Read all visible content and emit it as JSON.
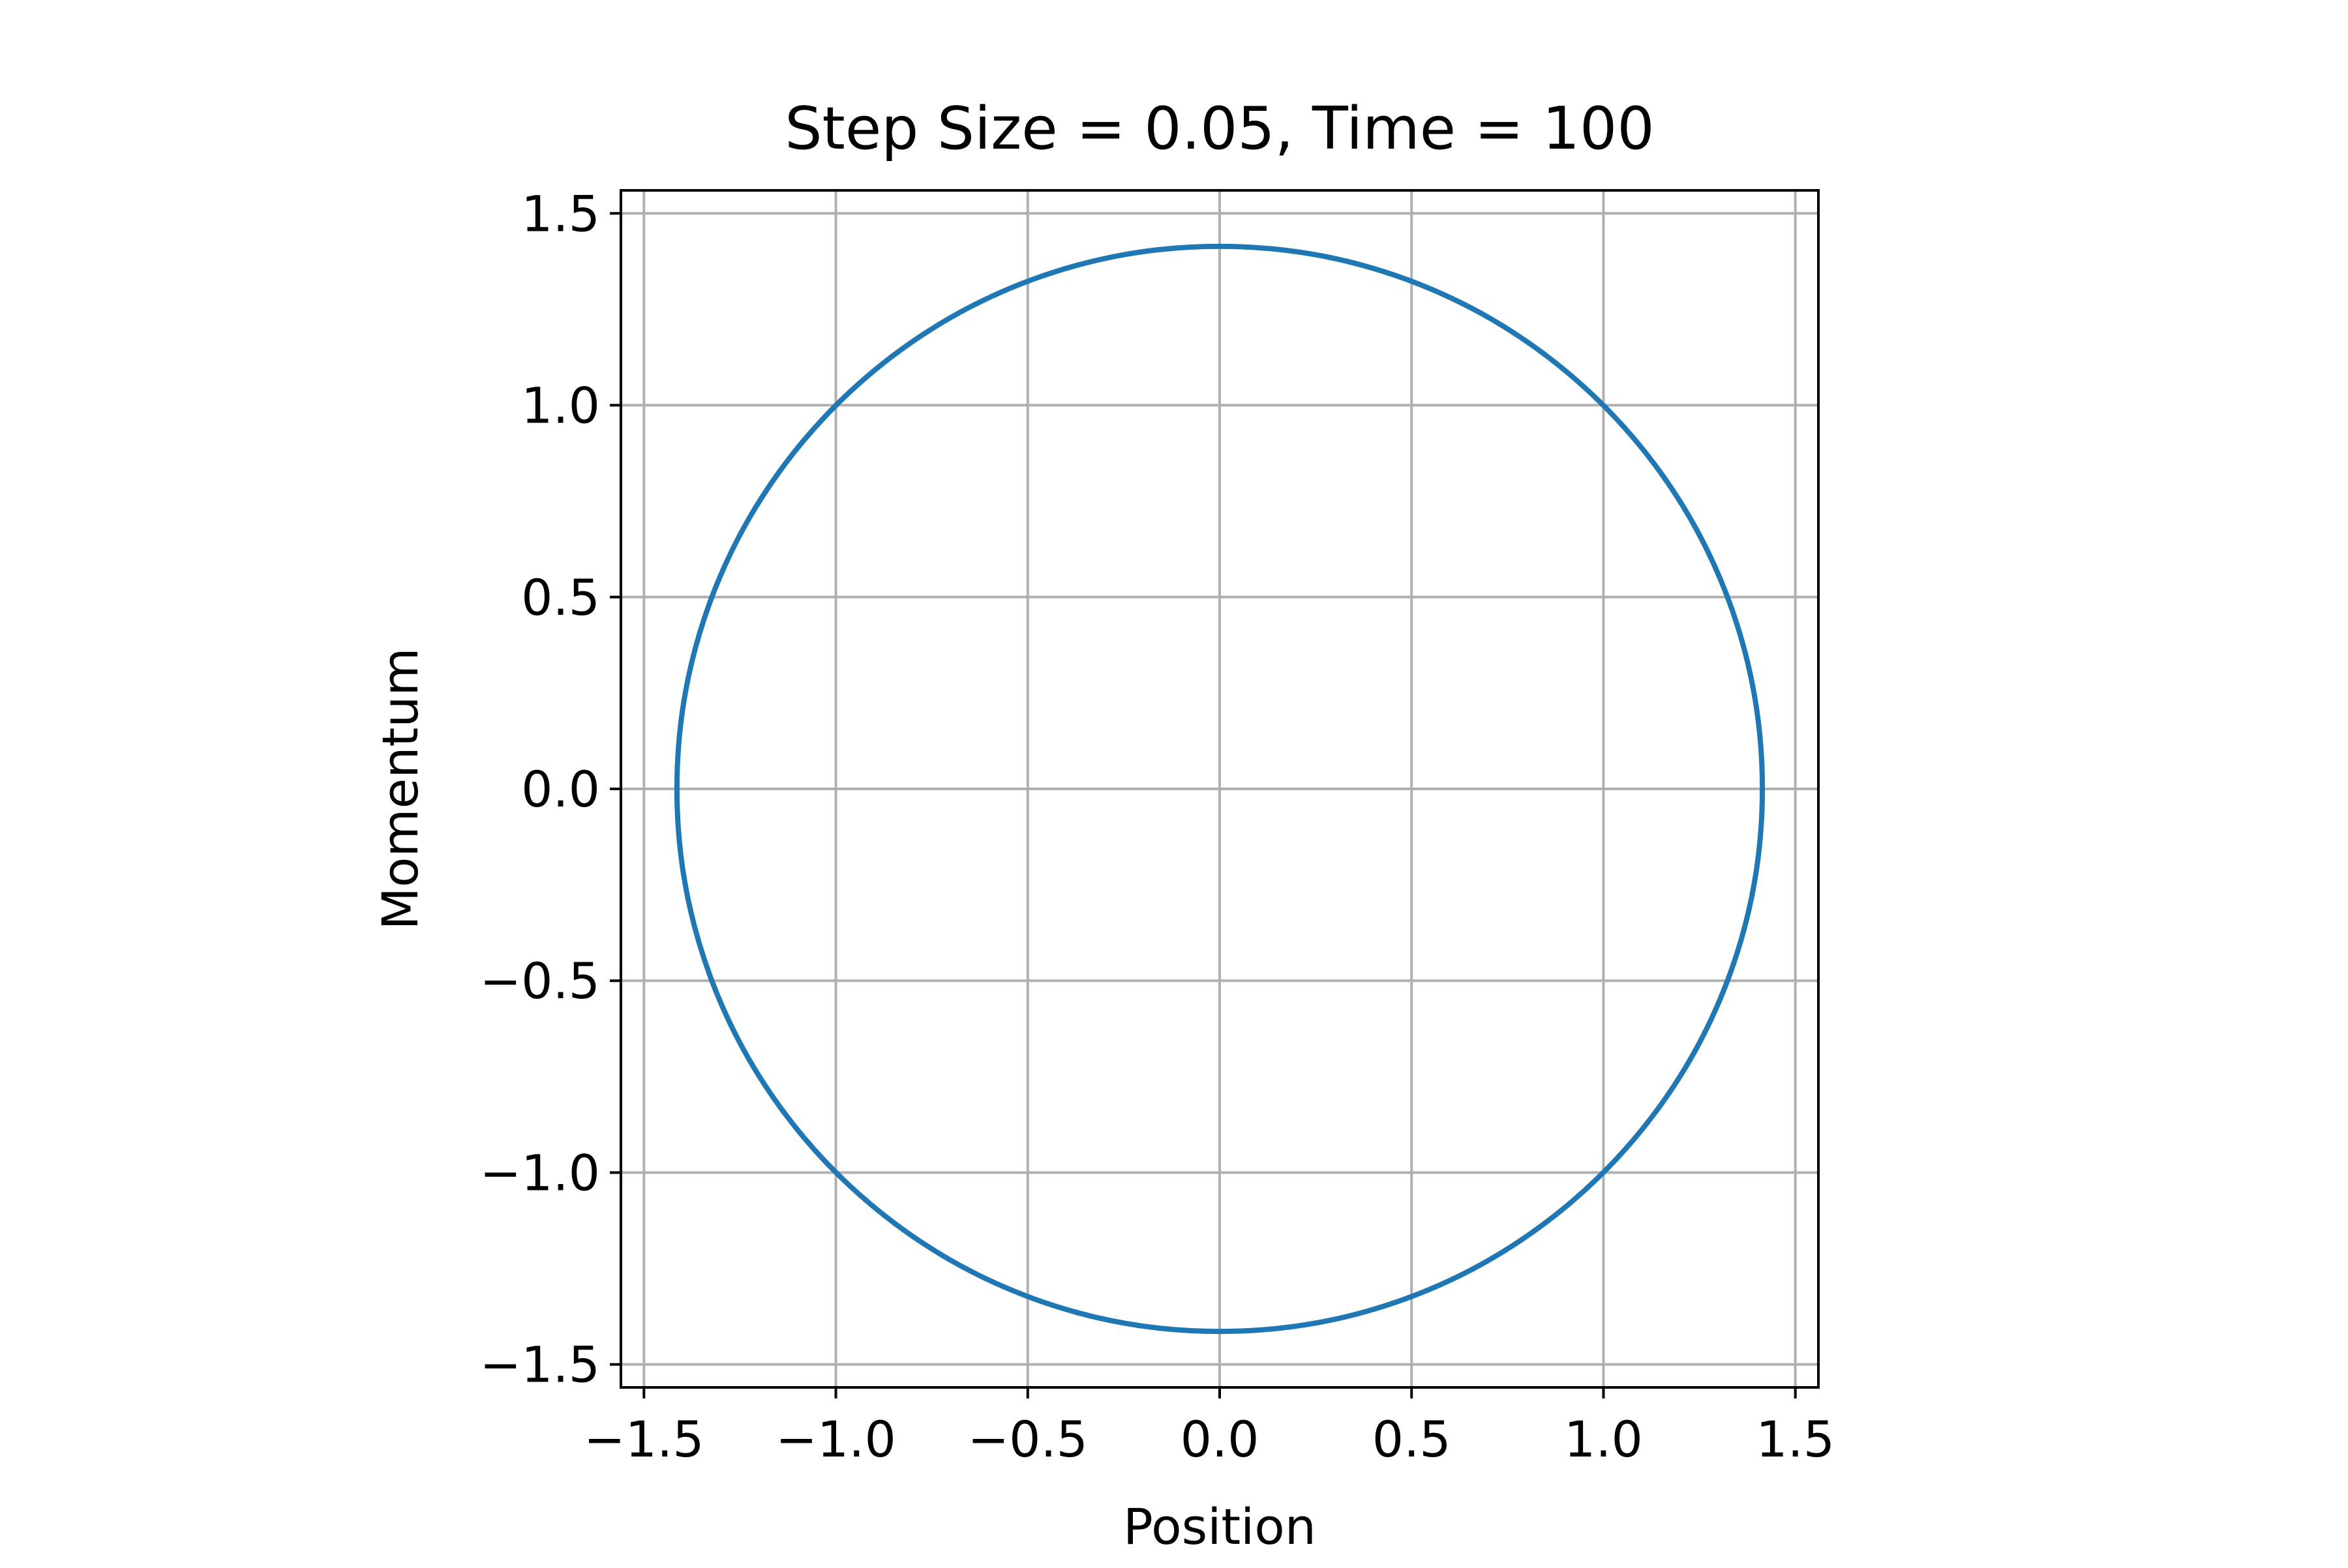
{
  "chart_data": {
    "type": "line",
    "title": "Step Size = 0.05, Time = 100",
    "xlabel": "Position",
    "ylabel": "Momentum",
    "xlim": [
      -1.56,
      1.56
    ],
    "ylim": [
      -1.56,
      1.56
    ],
    "grid": true,
    "x_ticks": [
      -1.5,
      -1.0,
      -0.5,
      0.0,
      0.5,
      1.0,
      1.5
    ],
    "x_tick_labels": [
      "−1.5",
      "−1.0",
      "−0.5",
      "0.0",
      "0.5",
      "1.0",
      "1.5"
    ],
    "y_ticks": [
      -1.5,
      -1.0,
      -0.5,
      0.0,
      0.5,
      1.0,
      1.5
    ],
    "y_tick_labels": [
      "−1.5",
      "−1.0",
      "−0.5",
      "0.0",
      "0.5",
      "1.0",
      "1.5"
    ],
    "series": [
      {
        "color": "#1f77b4",
        "points": [
          [
            1.414,
            0.0
          ],
          [
            1.393,
            0.246
          ],
          [
            1.329,
            0.484
          ],
          [
            1.225,
            0.707
          ],
          [
            1.083,
            0.909
          ],
          [
            0.909,
            1.083
          ],
          [
            0.707,
            1.225
          ],
          [
            0.484,
            1.329
          ],
          [
            0.246,
            1.393
          ],
          [
            0.0,
            1.414
          ],
          [
            -0.246,
            1.393
          ],
          [
            -0.484,
            1.329
          ],
          [
            -0.707,
            1.225
          ],
          [
            -0.909,
            1.083
          ],
          [
            -1.083,
            0.909
          ],
          [
            -1.225,
            0.707
          ],
          [
            -1.329,
            0.484
          ],
          [
            -1.393,
            0.246
          ],
          [
            -1.414,
            0.0
          ],
          [
            -1.393,
            -0.246
          ],
          [
            -1.329,
            -0.484
          ],
          [
            -1.225,
            -0.707
          ],
          [
            -1.083,
            -0.909
          ],
          [
            -0.909,
            -1.083
          ],
          [
            -0.707,
            -1.225
          ],
          [
            -0.484,
            -1.329
          ],
          [
            -0.246,
            -1.393
          ],
          [
            0.0,
            -1.414
          ],
          [
            0.246,
            -1.393
          ],
          [
            0.484,
            -1.329
          ],
          [
            0.707,
            -1.225
          ],
          [
            0.909,
            -1.083
          ],
          [
            1.083,
            -0.909
          ],
          [
            1.225,
            -0.707
          ],
          [
            1.329,
            -0.484
          ],
          [
            1.393,
            -0.246
          ],
          [
            1.414,
            0.0
          ]
        ]
      }
    ]
  }
}
